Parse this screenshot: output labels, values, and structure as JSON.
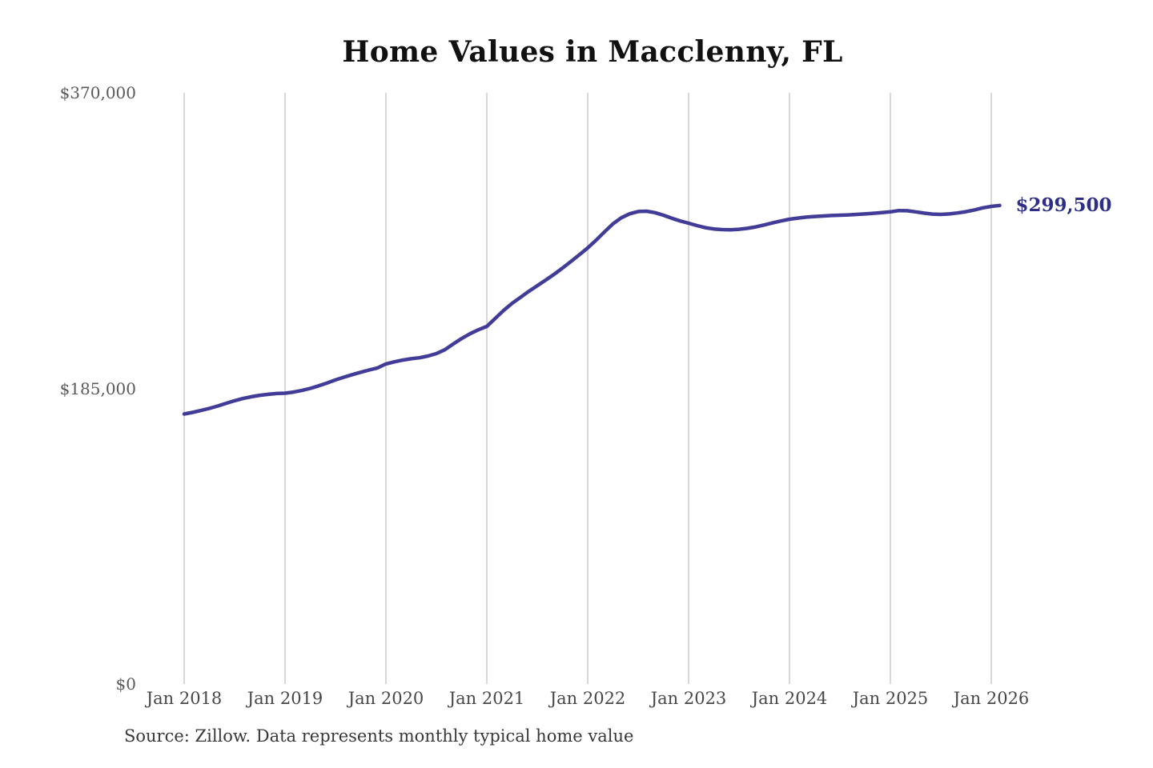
{
  "title": "Home Values in Macclenny, FL",
  "source": "Source: Zillow. Data represents monthly typical home value",
  "end_label": "$299,500",
  "colors": {
    "line": "#423c99",
    "end_label": "#2e2e87",
    "grid": "#d4d4d4",
    "title": "#111111",
    "y_tick": "#5a5a5a",
    "x_tick": "#474747",
    "source": "#383838",
    "background": "#ffffff"
  },
  "chart_data": {
    "type": "line",
    "title": "Home Values in Macclenny, FL",
    "xlabel": "",
    "ylabel": "",
    "x_start": "2018-01",
    "x_end": "2026-02",
    "x_interval": "month",
    "ylim": [
      0,
      370000
    ],
    "grid": "vertical-only",
    "legend_position": "none",
    "y_ticks": [
      {
        "label": "$0",
        "value": 0
      },
      {
        "label": "$185,000",
        "value": 185000
      },
      {
        "label": "$370,000",
        "value": 370000
      }
    ],
    "x_ticks": [
      {
        "label": "Jan 2018",
        "month_index": 0
      },
      {
        "label": "Jan 2019",
        "month_index": 12
      },
      {
        "label": "Jan 2020",
        "month_index": 24
      },
      {
        "label": "Jan 2021",
        "month_index": 36
      },
      {
        "label": "Jan 2022",
        "month_index": 48
      },
      {
        "label": "Jan 2023",
        "month_index": 60
      },
      {
        "label": "Jan 2024",
        "month_index": 72
      },
      {
        "label": "Jan 2025",
        "month_index": 84
      },
      {
        "label": "Jan 2026",
        "month_index": 96
      }
    ],
    "series": [
      {
        "name": "Typical home value",
        "latest_value": 299500,
        "latest_label": "$299,500",
        "values": [
          169000,
          170000,
          171200,
          172500,
          174000,
          175700,
          177300,
          178700,
          179800,
          180700,
          181300,
          181800,
          182000,
          182700,
          183700,
          185000,
          186600,
          188400,
          190300,
          192000,
          193600,
          195100,
          196500,
          197800,
          200300,
          201600,
          202700,
          203600,
          204200,
          205300,
          206800,
          209200,
          212800,
          216200,
          219200,
          221700,
          223800,
          228800,
          233800,
          238200,
          242000,
          245800,
          249300,
          252800,
          256400,
          260300,
          264400,
          268600,
          272900,
          277800,
          283000,
          288000,
          291800,
          294300,
          295700,
          295900,
          295000,
          293400,
          291500,
          289800,
          288400,
          286900,
          285600,
          284800,
          284400,
          284300,
          284600,
          285200,
          286100,
          287300,
          288600,
          289800,
          290900,
          291600,
          292200,
          292600,
          292900,
          293200,
          293400,
          293600,
          293900,
          294200,
          294600,
          295000,
          295500,
          296300,
          296200,
          295500,
          294700,
          294100,
          293900,
          294200,
          294800,
          295600,
          296700,
          298000,
          298900,
          299500
        ]
      }
    ]
  }
}
